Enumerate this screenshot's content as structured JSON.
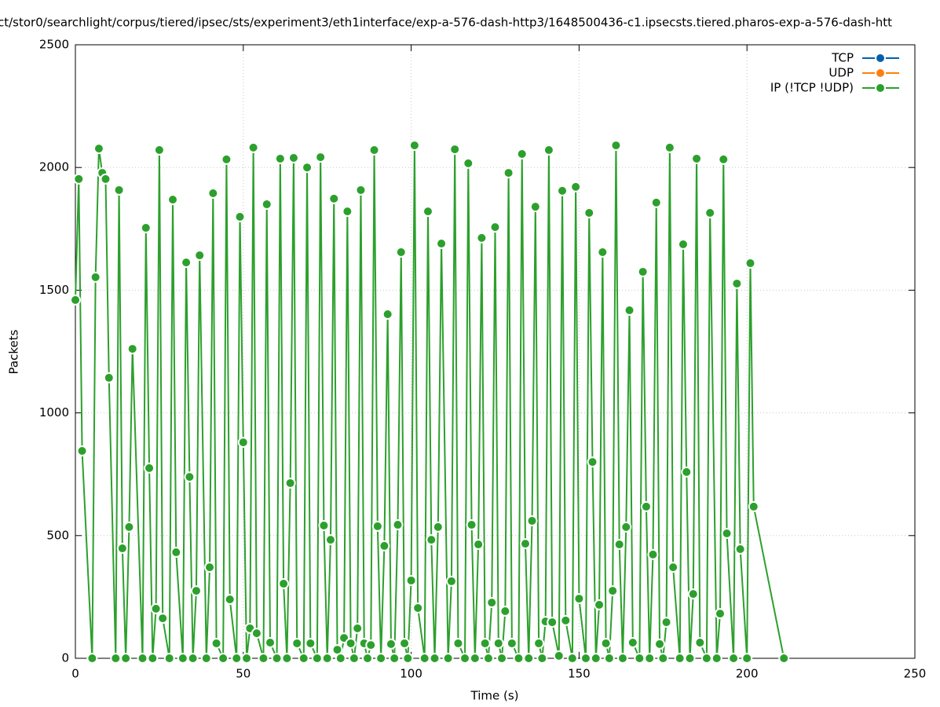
{
  "chart_data": {
    "type": "line",
    "title": "ct/stor0/searchlight/corpus/tiered/ipsec/sts/experiment3/eth1interface/exp-a-576-dash-http3/1648500436-c1.ipsecsts.tiered.pharos-exp-a-576-dash-htt",
    "x_label": "Time (s)",
    "y_label": "Packets",
    "xlim": [
      0,
      250
    ],
    "xticks": [
      0,
      50,
      100,
      150,
      200,
      250
    ],
    "ylim": [
      0,
      2500
    ],
    "yticks": [
      0,
      500,
      1000,
      1500,
      2000,
      2500
    ],
    "grid": true,
    "legend": "top-right",
    "x": [
      0,
      1,
      2,
      5,
      6,
      7,
      8,
      9,
      10,
      12,
      13,
      14,
      15,
      16,
      17,
      20,
      21,
      22,
      23,
      24,
      25,
      26,
      28,
      29,
      30,
      32,
      33,
      34,
      35,
      36,
      37,
      39,
      40,
      41,
      42,
      44,
      45,
      46,
      48,
      49,
      50,
      51,
      52,
      53,
      54,
      56,
      57,
      58,
      60,
      61,
      62,
      63,
      64,
      65,
      66,
      68,
      69,
      70,
      72,
      73,
      74,
      75,
      76,
      77,
      78,
      79,
      80,
      81,
      82,
      83,
      84,
      85,
      86,
      87,
      88,
      89,
      90,
      91,
      92,
      93,
      94,
      95,
      96,
      97,
      98,
      99,
      100,
      101,
      102,
      104,
      105,
      106,
      107,
      108,
      109,
      111,
      112,
      113,
      114,
      116,
      117,
      118,
      119,
      120,
      121,
      122,
      123,
      124,
      125,
      126,
      127,
      128,
      129,
      130,
      132,
      133,
      134,
      135,
      136,
      137,
      138,
      139,
      140,
      141,
      142,
      144,
      145,
      146,
      148,
      149,
      150,
      152,
      153,
      154,
      155,
      156,
      157,
      158,
      159,
      160,
      161,
      162,
      163,
      164,
      165,
      166,
      168,
      169,
      170,
      171,
      172,
      173,
      174,
      175,
      176,
      177,
      178,
      180,
      181,
      182,
      183,
      184,
      185,
      186,
      188,
      189,
      191,
      192,
      193,
      194,
      196,
      197,
      198,
      200,
      201,
      202,
      211
    ],
    "series": [
      {
        "name": "TCP",
        "color": "#0060ad",
        "values": [
          null,
          null,
          null,
          null,
          null,
          null,
          null,
          null,
          null,
          null,
          null,
          null,
          null,
          null,
          null,
          null,
          null,
          null,
          null,
          null,
          null,
          null,
          null,
          null,
          null,
          null,
          null,
          null,
          null,
          null,
          null,
          null,
          null,
          null,
          null,
          null,
          null,
          null,
          null,
          null,
          null,
          null,
          null,
          null,
          null,
          null,
          null,
          null,
          null,
          null,
          null,
          null,
          null,
          null,
          null,
          null,
          null,
          null,
          null,
          null,
          null,
          null,
          null,
          null,
          null,
          null,
          null,
          null,
          null,
          null,
          null,
          null,
          null,
          null,
          null,
          null,
          null,
          null,
          null,
          null,
          null,
          null,
          null,
          null,
          null,
          null,
          null,
          null,
          null,
          null,
          null,
          null,
          null,
          null,
          null,
          null,
          null,
          null,
          null,
          null,
          null,
          null,
          null,
          null,
          null,
          null,
          null,
          null,
          null,
          null,
          null,
          null,
          null,
          null,
          null,
          null,
          null,
          null,
          null,
          null,
          null,
          null,
          null,
          null,
          null,
          null,
          null,
          null,
          null,
          null,
          null,
          null,
          null,
          null,
          null,
          null,
          null,
          null,
          null,
          null,
          null,
          null,
          null,
          null,
          null,
          null,
          null,
          null,
          null,
          null,
          null,
          null,
          null,
          null,
          null,
          null,
          null,
          null,
          null,
          null,
          null,
          null,
          null,
          null,
          null,
          null,
          null,
          null,
          null,
          null,
          null,
          null,
          null,
          null,
          null,
          null,
          null
        ]
      },
      {
        "name": "UDP",
        "color": "#ff7f0e",
        "values": [
          null,
          null,
          null,
          null,
          null,
          null,
          null,
          null,
          null,
          null,
          null,
          null,
          null,
          null,
          null,
          null,
          null,
          null,
          null,
          null,
          null,
          null,
          null,
          null,
          null,
          null,
          null,
          null,
          null,
          null,
          null,
          null,
          null,
          null,
          null,
          null,
          null,
          null,
          null,
          null,
          null,
          null,
          null,
          null,
          null,
          null,
          null,
          null,
          null,
          null,
          null,
          null,
          null,
          null,
          null,
          null,
          null,
          null,
          null,
          null,
          null,
          null,
          null,
          null,
          null,
          null,
          null,
          null,
          null,
          null,
          null,
          null,
          null,
          null,
          null,
          null,
          null,
          null,
          null,
          null,
          null,
          null,
          null,
          null,
          null,
          null,
          null,
          null,
          null,
          null,
          null,
          null,
          null,
          null,
          null,
          null,
          null,
          null,
          null,
          null,
          null,
          null,
          null,
          null,
          null,
          null,
          null,
          null,
          null,
          null,
          null,
          null,
          null,
          null,
          null,
          null,
          null,
          null,
          null,
          null,
          null,
          null,
          null,
          null,
          null,
          null,
          null,
          null,
          null,
          null,
          null,
          null,
          null,
          null,
          null,
          null,
          null,
          null,
          null,
          null,
          null,
          null,
          null,
          null,
          null,
          null,
          null,
          null,
          null,
          null,
          null,
          null,
          null,
          null,
          null,
          null,
          null,
          null,
          null,
          null,
          null,
          null,
          null,
          null,
          null,
          null,
          null,
          null,
          null,
          null,
          null,
          null,
          null,
          null,
          null,
          null,
          null
        ]
      },
      {
        "name": "IP (!TCP  !UDP)",
        "color": "#2ca02c",
        "values": [
          1460,
          1953,
          845,
          0,
          1553,
          2077,
          1978,
          1953,
          1143,
          0,
          1908,
          448,
          0,
          535,
          1261,
          0,
          1754,
          775,
          0,
          202,
          2071,
          163,
          0,
          1869,
          432,
          0,
          1613,
          739,
          0,
          275,
          1642,
          0,
          371,
          1895,
          61,
          0,
          2033,
          240,
          0,
          1799,
          880,
          0,
          122,
          2081,
          102,
          0,
          1850,
          64,
          0,
          2036,
          304,
          0,
          714,
          2039,
          61,
          0,
          2000,
          61,
          0,
          2042,
          541,
          0,
          483,
          1873,
          35,
          0,
          83,
          1821,
          61,
          0,
          122,
          1908,
          61,
          0,
          54,
          2071,
          538,
          0,
          458,
          1402,
          58,
          0,
          544,
          1655,
          61,
          0,
          317,
          2090,
          205,
          0,
          1821,
          483,
          0,
          535,
          1690,
          0,
          314,
          2074,
          61,
          0,
          2017,
          544,
          0,
          464,
          1713,
          61,
          0,
          227,
          1757,
          61,
          0,
          192,
          1978,
          61,
          0,
          2055,
          467,
          0,
          560,
          1840,
          61,
          0,
          150,
          2071,
          147,
          10,
          1905,
          154,
          0,
          1921,
          243,
          0,
          1815,
          800,
          0,
          218,
          1655,
          61,
          0,
          275,
          2090,
          464,
          0,
          535,
          1418,
          64,
          0,
          1575,
          618,
          0,
          423,
          1857,
          58,
          0,
          147,
          2081,
          371,
          0,
          1687,
          759,
          0,
          262,
          2036,
          64,
          0,
          1815,
          0,
          182,
          2033,
          509,
          0,
          1527,
          445,
          0,
          1610,
          618,
          0
        ]
      }
    ]
  }
}
